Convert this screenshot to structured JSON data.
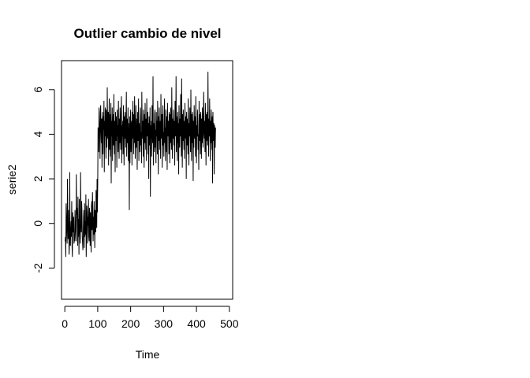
{
  "chart_data": {
    "type": "line",
    "title": "Outlier cambio de nivel",
    "xlabel": "Time",
    "ylabel": "serie2",
    "xlim": [
      -10,
      510
    ],
    "ylim": [
      -3.4,
      7.3
    ],
    "xticks": [
      0,
      100,
      200,
      300,
      400,
      500
    ],
    "yticks": [
      -2,
      0,
      2,
      4,
      6
    ],
    "xtick_labels": [
      "0",
      "100",
      "200",
      "300",
      "400",
      "500"
    ],
    "ytick_labels": [
      "-2",
      "0",
      "2",
      "4",
      "6"
    ],
    "grid": false,
    "legend": "none",
    "line_color": "#000000",
    "series": [
      {
        "x_start": 1,
        "x_step": 1,
        "values": [
          -0.8,
          -0.6,
          -1.5,
          0.9,
          0.3,
          -0.5,
          -0.9,
          2.0,
          0.4,
          -0.7,
          0.6,
          -0.2,
          -1.4,
          -0.9,
          2.3,
          -0.8,
          -1.0,
          -0.3,
          0.1,
          -0.6,
          1.0,
          -1.0,
          -1.5,
          0.5,
          -0.4,
          -0.1,
          0.3,
          -0.9,
          -0.5,
          -0.8,
          0.6,
          0.0,
          -0.5,
          -0.8,
          2.2,
          0.4,
          0.7,
          -0.2,
          -1.0,
          1.2,
          -0.6,
          0.2,
          -1.4,
          1.1,
          -0.2,
          -0.5,
          -0.9,
          2.3,
          0.2,
          -0.4,
          1.0,
          0.6,
          -0.6,
          -0.9,
          -1.2,
          -0.4,
          0.3,
          0.6,
          -1.1,
          0.9,
          -0.6,
          0.1,
          -0.5,
          1.3,
          -1.5,
          -0.3,
          0.8,
          0.5,
          -0.9,
          0.3,
          -0.1,
          1.1,
          -0.6,
          -0.8,
          0.7,
          0.2,
          -1.0,
          0.5,
          -0.6,
          -1.3,
          0.8,
          1.0,
          -0.3,
          1.4,
          0.6,
          -0.8,
          0.3,
          -0.5,
          1.0,
          0.1,
          -1.1,
          0.6,
          0.3,
          -0.4,
          1.5,
          1.0,
          -0.2,
          2.0,
          0.5,
          1.8,
          4.3,
          3.9,
          3.2,
          5.2,
          4.6,
          4.0,
          2.9,
          5.0,
          5.3,
          4.1,
          3.6,
          4.7,
          2.5,
          4.4,
          5.0,
          3.1,
          4.8,
          4.2,
          5.5,
          2.3,
          4.6,
          3.9,
          5.2,
          4.0,
          2.9,
          5.1,
          4.5,
          3.4,
          6.1,
          4.2,
          3.8,
          5.0,
          2.6,
          4.4,
          5.6,
          3.3,
          4.9,
          4.1,
          3.0,
          5.4,
          1.8,
          4.6,
          3.9,
          5.2,
          2.8,
          4.3,
          4.9,
          3.5,
          5.8,
          4.0,
          3.1,
          4.6,
          2.3,
          5.0,
          4.2,
          3.7,
          4.8,
          2.5,
          5.1,
          3.9,
          4.4,
          3.2,
          5.5,
          4.1,
          2.9,
          4.7,
          3.6,
          5.2,
          4.0,
          3.3,
          4.9,
          5.7,
          2.7,
          4.4,
          3.9,
          4.6,
          3.1,
          5.3,
          4.2,
          2.6,
          4.8,
          3.8,
          5.0,
          4.3,
          3.4,
          4.6,
          5.9,
          3.0,
          4.1,
          4.7,
          3.6,
          5.2,
          2.8,
          4.5,
          3.9,
          0.6,
          4.8,
          2.7,
          4.4,
          5.1,
          3.2,
          4.0,
          4.6,
          2.6,
          5.0,
          3.8,
          5.5,
          4.2,
          3.1,
          4.9,
          3.6,
          5.7,
          4.4,
          2.9,
          4.1,
          5.3,
          3.4,
          4.7,
          3.9,
          2.4,
          5.0,
          4.3,
          3.7,
          5.6,
          2.8,
          4.5,
          4.0,
          3.2,
          4.8,
          5.2,
          3.5,
          4.1,
          2.7,
          5.9,
          4.4,
          3.8,
          4.6,
          3.0,
          5.1,
          4.2,
          2.5,
          4.9,
          3.6,
          5.4,
          4.0,
          3.3,
          4.7,
          2.8,
          5.6,
          4.3,
          3.9,
          5.0,
          3.1,
          4.5,
          2.0,
          4.8,
          4.1,
          3.5,
          5.2,
          1.2,
          4.4,
          3.8,
          4.6,
          3.0,
          5.3,
          4.1,
          3.6,
          6.6,
          2.6,
          4.5,
          4.0,
          3.2,
          4.9,
          5.1,
          3.4,
          4.2,
          2.7,
          5.0,
          3.9,
          4.6,
          3.1,
          5.5,
          4.3,
          2.2,
          4.8,
          3.7,
          5.2,
          4.0,
          3.3,
          4.6,
          2.9,
          5.8,
          4.2,
          3.8,
          4.9,
          2.5,
          4.4,
          5.3,
          3.5,
          4.1,
          3.0,
          4.7,
          5.6,
          3.6,
          4.3,
          2.8,
          5.1,
          4.0,
          3.2,
          4.8,
          2.4,
          5.4,
          4.2,
          3.9,
          4.6,
          3.1,
          5.0,
          4.4,
          2.7,
          4.9,
          3.6,
          5.2,
          4.1,
          3.3,
          6.1,
          4.0,
          2.9,
          4.7,
          3.8,
          5.1,
          4.3,
          3.5,
          4.6,
          2.6,
          5.5,
          4.2,
          3.9,
          6.6,
          3.2,
          4.8,
          4.0,
          2.8,
          5.0,
          3.6,
          4.5,
          2.2,
          5.3,
          4.1,
          3.4,
          4.7,
          3.9,
          5.8,
          4.4,
          3.0,
          6.5,
          4.2,
          2.5,
          4.9,
          3.7,
          5.1,
          4.0,
          3.3,
          4.6,
          2.9,
          5.4,
          4.3,
          3.8,
          4.8,
          2.0,
          5.0,
          4.1,
          3.5,
          4.7,
          3.1,
          5.6,
          4.2,
          2.6,
          4.5,
          3.9,
          5.2,
          4.4,
          3.2,
          6.0,
          4.0,
          2.8,
          4.9,
          3.6,
          5.0,
          4.3,
          1.9,
          4.6,
          3.4,
          5.3,
          4.1,
          3.8,
          4.8,
          3.0,
          5.7,
          4.2,
          2.7,
          4.4,
          3.9,
          5.1,
          4.6,
          3.3,
          4.0,
          2.4,
          5.5,
          4.3,
          3.7,
          4.9,
          3.1,
          5.0,
          4.5,
          2.9,
          4.7,
          3.6,
          5.2,
          4.1,
          3.4,
          4.8,
          5.9,
          4.0,
          3.8,
          4.6,
          3.2,
          5.4,
          4.2,
          2.6,
          4.9,
          3.7,
          5.0,
          4.3,
          3.5,
          6.8,
          4.1,
          3.0,
          4.7,
          3.9,
          5.6,
          4.4,
          2.8,
          4.6,
          3.6,
          5.1,
          4.2,
          3.3,
          4.8,
          1.8,
          5.0,
          4.0,
          3.7,
          4.5,
          2.2,
          4.4,
          4.1,
          3.4,
          4.3
        ]
      }
    ]
  }
}
